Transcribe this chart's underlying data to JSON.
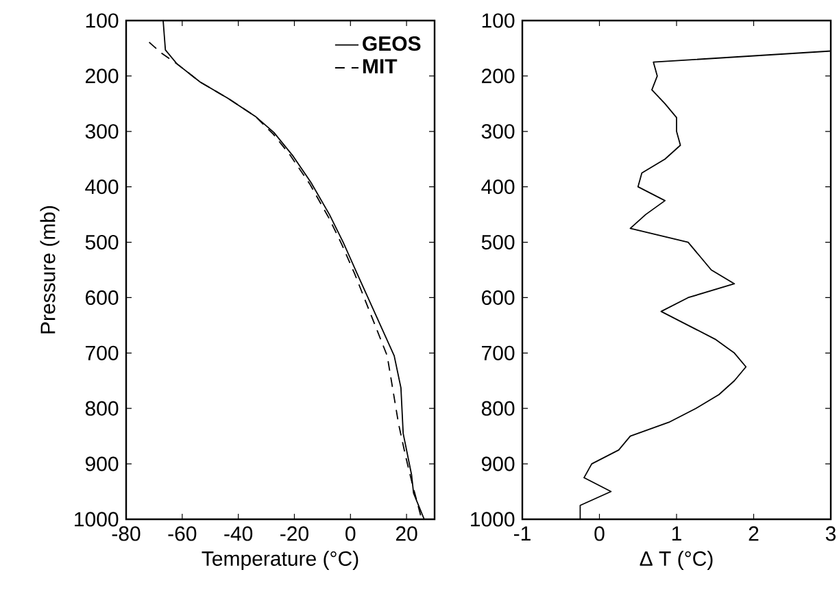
{
  "chart_data": [
    {
      "type": "line",
      "xlabel": "Temperature (°C)",
      "ylabel": "Pressure (mb)",
      "xlim": [
        -80,
        30
      ],
      "ylim": [
        1000,
        100
      ],
      "xticks": [
        -80,
        -60,
        -40,
        -20,
        0,
        20
      ],
      "yticks": [
        100,
        200,
        300,
        400,
        500,
        600,
        700,
        800,
        900,
        1000
      ],
      "legend": "top right",
      "series": [
        {
          "name": "GEOS",
          "color": "#000000",
          "line_style": "solid",
          "x": [
            -66.8,
            -66,
            -61.9,
            -53.6,
            -43.8,
            -33.9,
            -27.3,
            -20.7,
            -14.1,
            -7.5,
            -2.6,
            2.4,
            9,
            15.6,
            18,
            18.8,
            21.8,
            22.5,
            26.3
          ],
          "values": [
            100,
            153,
            178,
            211,
            240,
            273,
            302,
            343,
            392,
            450,
            500,
            557,
            631,
            705,
            763,
            845,
            920,
            953,
            1000
          ]
        },
        {
          "name": "MIT",
          "color": "#000000",
          "line_style": "dashed",
          "x": [
            -71.8,
            -67.6,
            -61.9,
            -53.6,
            -43.8,
            -33.9,
            -27.5,
            -21.5,
            -14.5,
            -7.5,
            -3,
            1.5,
            7.3,
            13.1,
            17.2,
            19.7,
            22.1,
            25.4
          ],
          "values": [
            139,
            158,
            178,
            211,
            240,
            273,
            305,
            343,
            395,
            458,
            505,
            557,
            631,
            705,
            829,
            887,
            937,
            1000
          ]
        }
      ]
    },
    {
      "type": "line",
      "xlabel": "Δ T (°C)",
      "xlim": [
        -1,
        3
      ],
      "ylim": [
        1000,
        100
      ],
      "xticks": [
        -1,
        0,
        1,
        2,
        3
      ],
      "yticks": [
        100,
        200,
        300,
        400,
        500,
        600,
        700,
        800,
        900,
        1000
      ],
      "series": [
        {
          "color": "#000000",
          "x": [
            3,
            0.7,
            0.75,
            0.68,
            0.85,
            1.0,
            1.0,
            1.05,
            0.85,
            0.55,
            0.5,
            0.85,
            0.6,
            0.4,
            1.15,
            1.3,
            1.45,
            1.75,
            1.15,
            0.8,
            1.15,
            1.5,
            1.75,
            1.9,
            1.75,
            1.55,
            1.25,
            0.9,
            0.4,
            0.25,
            -0.1,
            -0.2,
            0.15,
            -0.25,
            -0.25
          ],
          "values": [
            155,
            175,
            200,
            225,
            250,
            275,
            300,
            325,
            350,
            375,
            400,
            425,
            450,
            475,
            500,
            525,
            550,
            575,
            600,
            625,
            650,
            675,
            700,
            725,
            750,
            775,
            800,
            825,
            850,
            875,
            900,
            925,
            950,
            975,
            1000
          ]
        }
      ]
    }
  ]
}
